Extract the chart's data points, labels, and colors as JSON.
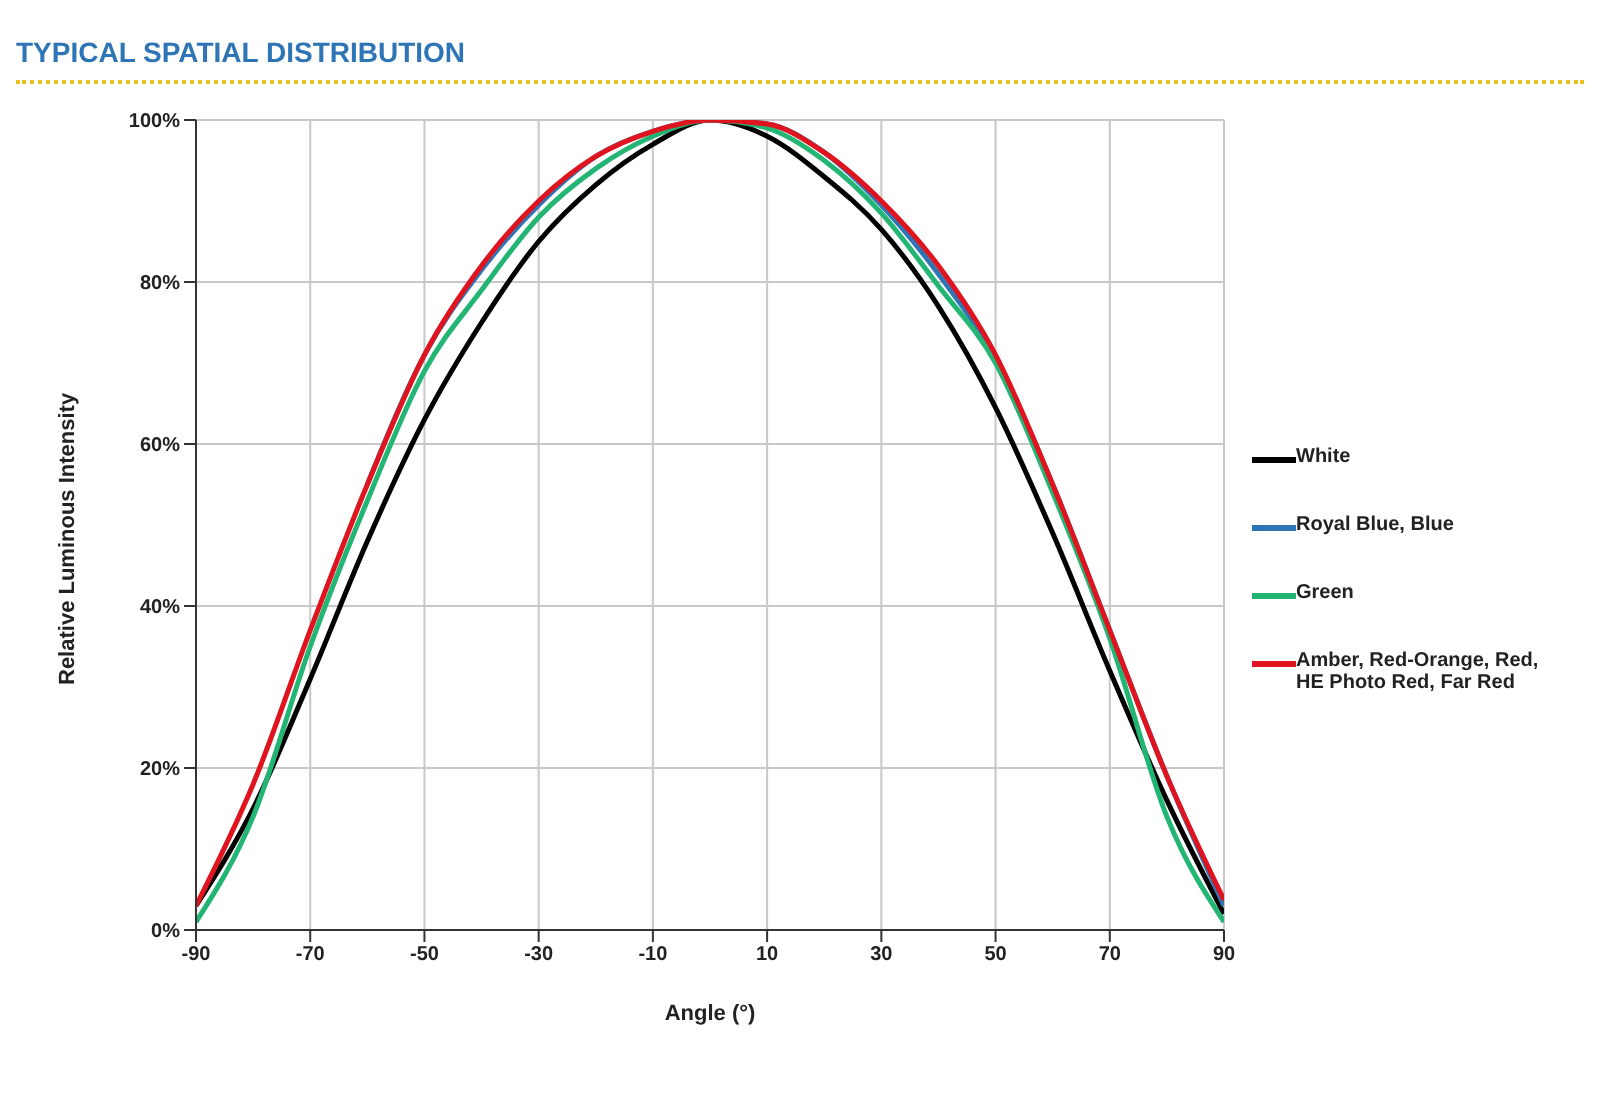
{
  "chart_data": {
    "type": "line",
    "title": "TYPICAL SPATIAL DISTRIBUTION",
    "xlabel": "Angle (°)",
    "ylabel": "Relative Luminous Intensity",
    "x": [
      -90,
      -80,
      -70,
      -60,
      -50,
      -40,
      -30,
      -20,
      -10,
      0,
      10,
      20,
      30,
      40,
      50,
      60,
      70,
      80,
      90
    ],
    "series": [
      {
        "name": "White",
        "color": "#000000",
        "values": [
          3,
          15,
          31,
          48,
          63,
          75,
          85,
          92,
          97,
          100,
          98,
          93,
          86.5,
          77,
          64.5,
          49,
          32,
          16,
          2
        ]
      },
      {
        "name": "Royal Blue, Blue",
        "color": "#2e75b6",
        "values": [
          null,
          null,
          null,
          55,
          71,
          81.5,
          89.5,
          95.5,
          98.6,
          100,
          99.5,
          96,
          89.5,
          81,
          70.5,
          55,
          37,
          19,
          3
        ]
      },
      {
        "name": "Green",
        "color": "#22b573",
        "values": [
          1,
          14,
          35,
          53,
          69,
          79,
          88,
          94,
          98,
          100,
          99,
          95,
          88.5,
          79.5,
          70,
          54,
          36,
          14,
          1
        ]
      },
      {
        "name": "Amber, Red-Orange, Red, HE Photo Red, Far Red",
        "color": "#e0141e",
        "values": [
          3,
          18,
          37,
          55,
          71,
          82,
          90,
          95.5,
          98.6,
          100,
          99.5,
          96,
          90,
          82,
          71,
          55,
          37,
          19,
          3.7
        ]
      }
    ],
    "xlim": [
      -90,
      90
    ],
    "xticks": [
      -90,
      -70,
      -50,
      -30,
      -10,
      10,
      30,
      50,
      70,
      90
    ],
    "ylim": [
      0,
      100
    ],
    "yticks": [
      {
        "value": 0,
        "label": "0%"
      },
      {
        "value": 20,
        "label": "20%"
      },
      {
        "value": 40,
        "label": "40%"
      },
      {
        "value": 60,
        "label": "60%"
      },
      {
        "value": 80,
        "label": "80%"
      },
      {
        "value": 100,
        "label": "100%"
      }
    ],
    "grid": true,
    "legend": "right",
    "marker": "none",
    "line_style": "solid"
  }
}
